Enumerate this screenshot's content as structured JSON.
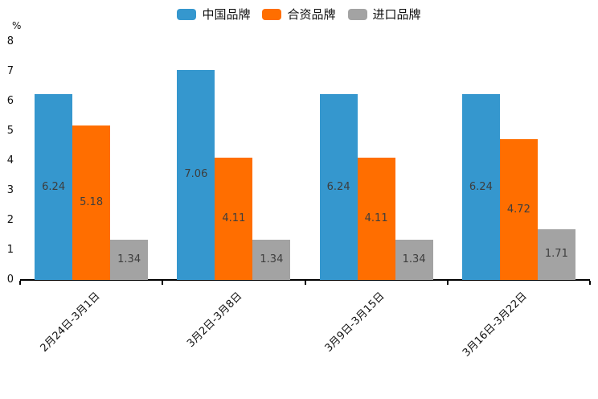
{
  "chart_data": {
    "type": "bar",
    "title": "",
    "ylabel": "%",
    "xlabel": "",
    "ylim": [
      0,
      8
    ],
    "yticks": [
      0,
      1,
      2,
      3,
      4,
      5,
      6,
      7,
      8
    ],
    "grid": false,
    "legend_position": "top-center",
    "categories": [
      "2月24日-3月1日",
      "3月2日-3月8日",
      "3月9日-3月15日",
      "3月16日-3月22日"
    ],
    "series": [
      {
        "name": "中国品牌",
        "color": "#3597CE",
        "values": [
          6.24,
          7.06,
          6.24,
          6.24
        ]
      },
      {
        "name": "合资品牌",
        "color": "#FF6E00",
        "values": [
          5.18,
          4.11,
          4.11,
          4.72
        ]
      },
      {
        "name": "进口品牌",
        "color": "#A3A3A3",
        "values": [
          1.34,
          1.34,
          1.34,
          1.71
        ]
      }
    ],
    "value_label_color": "#3d3d3d",
    "axis_color": "#000000"
  }
}
